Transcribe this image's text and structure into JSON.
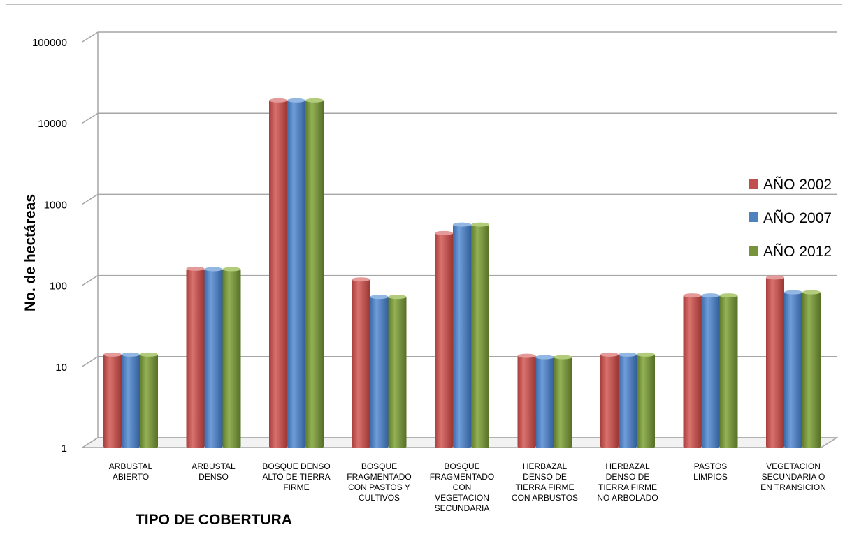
{
  "chart_data": {
    "type": "bar",
    "scale": "log",
    "ylim": [
      1,
      100000
    ],
    "yticks": [
      "100000",
      "10000",
      "1000",
      "100",
      "10",
      "1"
    ],
    "ylabel": "No. de hectáreas",
    "xlabel": "TIPO DE COBERTURA",
    "legend_position": "right",
    "grid": true,
    "categories": [
      [
        "ARBUSTAL",
        "ABIERTO"
      ],
      [
        "ARBUSTAL",
        "DENSO"
      ],
      [
        "BOSQUE DENSO",
        "ALTO DE TIERRA",
        "FIRME"
      ],
      [
        "BOSQUE",
        "FRAGMENTADO",
        "CON PASTOS Y",
        "CULTIVOS"
      ],
      [
        "BOSQUE",
        "FRAGMENTADO",
        "CON",
        "VEGETACION",
        "SECUNDARIA"
      ],
      [
        "HERBAZAL",
        "DENSO DE",
        "TIERRA FIRME",
        "CON ARBUSTOS"
      ],
      [
        "HERBAZAL",
        "DENSO DE",
        "TIERRA FIRME",
        "NO ARBOLADO"
      ],
      [
        "PASTOS",
        "LIMPIOS"
      ],
      [
        "VEGETACION",
        "SECUNDARIA O",
        "EN TRANSICION"
      ]
    ],
    "series": [
      {
        "name": "AÑO 2002",
        "color": "#c0504d",
        "values": [
          14,
          160,
          19000,
          118,
          440,
          13.5,
          14,
          75,
          125
        ]
      },
      {
        "name": "AÑO 2007",
        "color": "#4f81bd",
        "values": [
          14,
          158,
          19000,
          72,
          560,
          13,
          14,
          75,
          82
        ]
      },
      {
        "name": "AÑO 2012",
        "color": "#77933c",
        "values": [
          14,
          158,
          19000,
          72,
          560,
          13,
          14,
          75,
          82
        ]
      }
    ]
  }
}
